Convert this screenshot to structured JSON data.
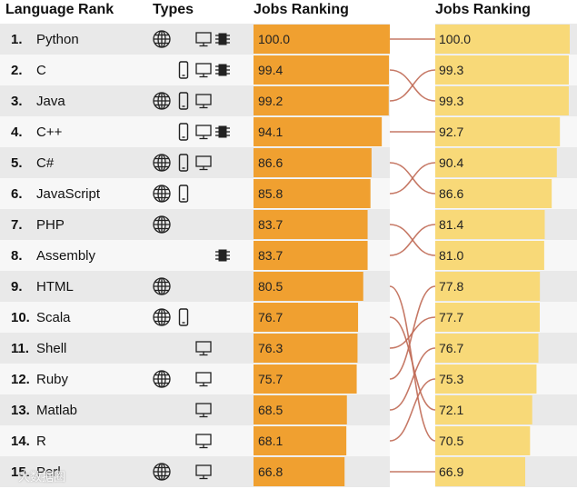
{
  "header": {
    "language_rank": "Language Rank",
    "types": "Types",
    "jobs_left": "Jobs Ranking",
    "jobs_right": "Jobs Ranking"
  },
  "colors": {
    "row_odd": "#e9e9e9",
    "row_even": "#f7f7f7",
    "bar_left": "#f0a030",
    "bar_right": "#f8d978",
    "line": "#c06a55",
    "icon": "#222222"
  },
  "watermark": "大数据圈",
  "chart_data": {
    "type": "bar",
    "title": "Jobs Ranking",
    "xlim": [
      0,
      100
    ],
    "categories": [
      "Python",
      "C",
      "Java",
      "C++",
      "C#",
      "JavaScript",
      "PHP",
      "Assembly",
      "HTML",
      "Scala",
      "Shell",
      "Ruby",
      "Matlab",
      "R",
      "Perl"
    ],
    "ranks": [
      "1.",
      "2.",
      "3.",
      "4.",
      "5.",
      "6.",
      "7.",
      "8.",
      "9.",
      "10.",
      "11.",
      "12.",
      "13.",
      "14.",
      "15."
    ],
    "types": [
      [
        "web",
        "desktop",
        "embedded"
      ],
      [
        "mobile",
        "desktop",
        "embedded"
      ],
      [
        "web",
        "mobile",
        "desktop"
      ],
      [
        "mobile",
        "desktop",
        "embedded"
      ],
      [
        "web",
        "mobile",
        "desktop"
      ],
      [
        "web",
        "mobile"
      ],
      [
        "web"
      ],
      [
        "embedded"
      ],
      [
        "web"
      ],
      [
        "web",
        "mobile"
      ],
      [
        "desktop"
      ],
      [
        "web",
        "desktop"
      ],
      [
        "desktop"
      ],
      [
        "desktop"
      ],
      [
        "web",
        "desktop"
      ]
    ],
    "series": [
      {
        "name": "Jobs Ranking (left)",
        "values": [
          100.0,
          99.4,
          99.2,
          94.1,
          86.6,
          85.8,
          83.7,
          83.7,
          80.5,
          76.7,
          76.3,
          75.7,
          68.5,
          68.1,
          66.8
        ]
      },
      {
        "name": "Jobs Ranking (right)",
        "values": [
          100.0,
          99.3,
          99.3,
          92.7,
          90.4,
          86.6,
          81.4,
          81.0,
          77.8,
          77.7,
          76.7,
          75.3,
          72.1,
          70.5,
          66.9
        ]
      }
    ],
    "value_labels_left": [
      "100.0",
      "99.4",
      "99.2",
      "94.1",
      "86.6",
      "85.8",
      "83.7",
      "83.7",
      "80.5",
      "76.7",
      "76.3",
      "75.7",
      "68.5",
      "68.1",
      "66.8"
    ],
    "value_labels_right": [
      "100.0",
      "99.3",
      "99.3",
      "92.7",
      "90.4",
      "86.6",
      "81.4",
      "81.0",
      "77.8",
      "77.7",
      "76.7",
      "75.3",
      "72.1",
      "70.5",
      "66.9"
    ],
    "links": [
      [
        0,
        0
      ],
      [
        1,
        2
      ],
      [
        2,
        1
      ],
      [
        3,
        3
      ],
      [
        4,
        5
      ],
      [
        5,
        4
      ],
      [
        6,
        7
      ],
      [
        7,
        6
      ],
      [
        8,
        13
      ],
      [
        9,
        12
      ],
      [
        10,
        9
      ],
      [
        11,
        8
      ],
      [
        12,
        10
      ],
      [
        13,
        11
      ],
      [
        14,
        14
      ]
    ]
  }
}
